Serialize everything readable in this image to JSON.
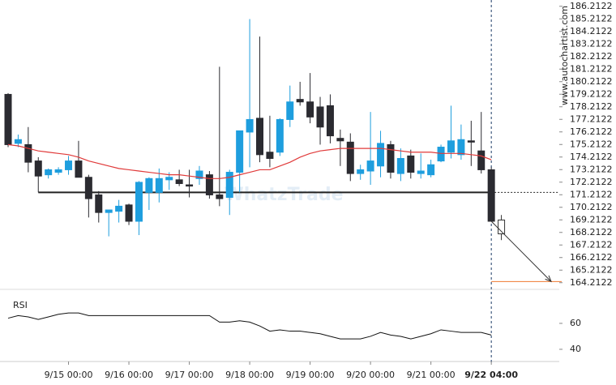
{
  "chart_data": [
    {
      "type": "candlestick",
      "categories": [
        null,
        null,
        null,
        null,
        null,
        null,
        "9/15 00:00",
        null,
        null,
        null,
        null,
        null,
        "9/16 00:00",
        null,
        null,
        null,
        null,
        null,
        "9/17 00:00",
        null,
        null,
        null,
        null,
        null,
        "9/18 00:00",
        null,
        null,
        null,
        null,
        null,
        "9/19 00:00",
        null,
        null,
        null,
        null,
        null,
        "9/20 00:00",
        null,
        null,
        null,
        null,
        null,
        "9/21 00:00",
        null,
        null,
        null,
        null,
        null,
        "9/22 04:00"
      ],
      "open": [
        179.2,
        175.3,
        175.2,
        173.9,
        172.8,
        173.0,
        173.2,
        173.9,
        172.6,
        171.2,
        169.8,
        169.9,
        170.4,
        169.1,
        171.4,
        171.4,
        172.4,
        172.4,
        172.0,
        172.5,
        172.8,
        171.2,
        171.0,
        173.0,
        176.2,
        177.3,
        174.6,
        174.6,
        177.2,
        178.8,
        178.6,
        178.2,
        178.3,
        175.7,
        175.4,
        172.9,
        173.1,
        173.5,
        175.2,
        172.9,
        174.3,
        172.9,
        172.8,
        173.9,
        174.6,
        174.4,
        175.5,
        174.7,
        173.2
      ],
      "high": [
        179.3,
        176.0,
        176.6,
        174.2,
        173.3,
        173.4,
        174.3,
        175.5,
        172.8,
        171.5,
        170.0,
        170.8,
        170.5,
        172.3,
        172.6,
        173.3,
        173.0,
        173.2,
        173.2,
        173.5,
        173.1,
        181.4,
        173.2,
        176.3,
        185.2,
        183.8,
        177.5,
        177.3,
        179.9,
        180.2,
        180.9,
        179.0,
        179.2,
        176.4,
        176.1,
        173.6,
        177.8,
        176.3,
        175.5,
        174.9,
        174.8,
        174.5,
        174.0,
        175.2,
        178.3,
        176.8,
        177.1,
        177.8,
        173.4
      ],
      "low": [
        175.0,
        175.0,
        173.0,
        171.4,
        172.5,
        172.8,
        172.8,
        172.6,
        169.4,
        169.0,
        167.9,
        169.0,
        168.8,
        168.0,
        170.0,
        170.6,
        171.6,
        171.9,
        171.0,
        172.0,
        170.9,
        170.3,
        169.6,
        171.4,
        173.4,
        173.8,
        173.4,
        174.3,
        176.6,
        178.3,
        176.9,
        175.2,
        175.3,
        173.5,
        172.3,
        172.4,
        172.0,
        172.6,
        172.5,
        172.3,
        172.5,
        172.5,
        172.6,
        173.8,
        174.1,
        174.0,
        173.5,
        172.9,
        169.1
      ],
      "close": [
        175.2,
        175.6,
        173.8,
        172.7,
        173.2,
        173.2,
        173.9,
        172.6,
        170.9,
        169.8,
        170.0,
        170.3,
        169.1,
        172.2,
        172.5,
        172.5,
        172.6,
        172.1,
        171.9,
        173.1,
        171.2,
        170.9,
        173.0,
        176.3,
        177.2,
        174.4,
        174.1,
        177.2,
        178.6,
        178.6,
        177.4,
        176.6,
        175.9,
        175.5,
        172.9,
        173.2,
        173.9,
        175.3,
        173.0,
        174.1,
        173.0,
        173.1,
        173.6,
        175.0,
        175.5,
        175.6,
        175.4,
        173.2,
        169.1
      ],
      "up_color": "#1e9ede",
      "down_color": "#2b2b31",
      "moving_average": {
        "color": "#e03a3a",
        "values": [
          175.2,
          175.1,
          174.9,
          174.7,
          174.6,
          174.5,
          174.4,
          174.2,
          173.9,
          173.7,
          173.5,
          173.3,
          173.2,
          173.1,
          173.0,
          172.9,
          172.8,
          172.8,
          172.7,
          172.6,
          172.5,
          172.5,
          172.6,
          172.8,
          173.0,
          173.2,
          173.2,
          173.5,
          173.8,
          174.2,
          174.5,
          174.7,
          174.8,
          174.9,
          174.9,
          174.9,
          174.9,
          174.9,
          174.8,
          174.7,
          174.6,
          174.6,
          174.6,
          174.5,
          174.5,
          174.5,
          174.4,
          174.3,
          174.0
        ]
      },
      "projection": {
        "open": 169.2,
        "high": 169.6,
        "low": 167.6,
        "close": 168.1
      },
      "support": {
        "value": 171.4,
        "color": "#222222"
      },
      "target": {
        "value": 164.3,
        "color": "#f07a30"
      },
      "ylim": [
        163.7122,
        186.7122
      ],
      "yticks": [
        164.2122,
        165.2122,
        166.2122,
        167.2122,
        168.2122,
        169.2122,
        170.2122,
        171.2122,
        172.2122,
        173.2122,
        174.2122,
        175.2122,
        176.2122,
        177.2122,
        178.2122,
        179.2122,
        180.2122,
        181.2122,
        182.2122,
        183.2122,
        184.2122,
        185.2122,
        186.2122
      ],
      "watermark": "WhatzTrade",
      "source": "www.autochartist.com"
    },
    {
      "type": "line",
      "title": "RSI",
      "color": "#111111",
      "values": [
        64,
        66,
        65,
        63,
        65,
        67,
        68,
        68,
        66,
        66,
        66,
        66,
        66,
        66,
        66,
        66,
        66,
        66,
        66,
        66,
        66,
        61,
        61,
        62,
        61,
        58,
        54,
        55,
        54,
        54,
        53,
        52,
        50,
        48,
        48,
        48,
        50,
        53,
        51,
        50,
        48,
        50,
        52,
        55,
        54,
        53,
        53,
        53,
        51
      ],
      "ylim": [
        30.6,
        80.6
      ],
      "yticks": [
        40,
        60
      ]
    }
  ]
}
